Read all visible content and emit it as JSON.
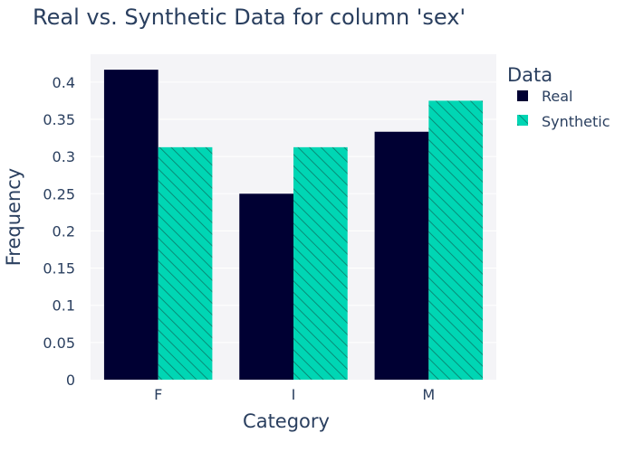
{
  "chart_data": {
    "type": "bar",
    "title": "Real vs. Synthetic Data for column 'sex'",
    "xlabel": "Category",
    "ylabel": "Frequency",
    "categories": [
      "F",
      "I",
      "M"
    ],
    "series": [
      {
        "name": "Real",
        "values": [
          0.4167,
          0.25,
          0.3333
        ],
        "color": "#000033",
        "pattern": "solid"
      },
      {
        "name": "Synthetic",
        "values": [
          0.3125,
          0.3125,
          0.375
        ],
        "color": "#00d6b4",
        "pattern": "diagonal-hatch"
      }
    ],
    "ylim": [
      0,
      0.4375
    ],
    "yticks": [
      0,
      0.05,
      0.1,
      0.15,
      0.2,
      0.25,
      0.3,
      0.35,
      0.4
    ],
    "ytick_labels": [
      "0",
      "0.05",
      "0.1",
      "0.15",
      "0.2",
      "0.25",
      "0.3",
      "0.35",
      "0.4"
    ],
    "grid": true,
    "legend": {
      "title": "Data",
      "placement": "top-right-outside"
    },
    "colors": {
      "plot_background": "#f4f4f7",
      "text": "#2a3f5f",
      "grid": "#ffffff"
    }
  }
}
